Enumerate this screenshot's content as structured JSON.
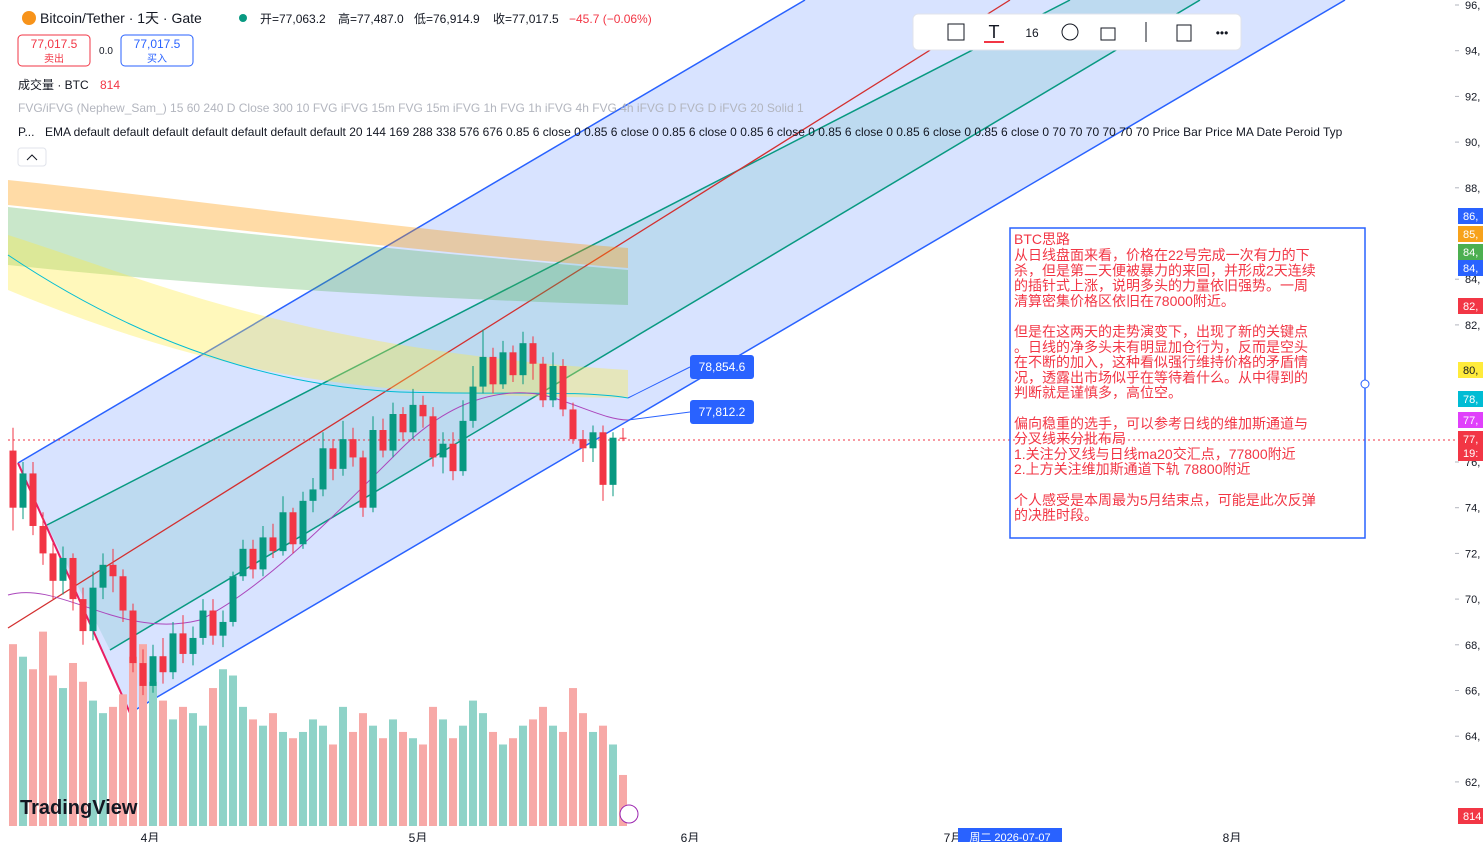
{
  "header": {
    "symbol": "Bitcoin/Tether · 1天 · Gate",
    "open": "开=77,063.2",
    "high": "高=77,487.0",
    "low": "低=76,914.9",
    "close": "收=77,017.5",
    "change": "−45.7 (−0.06%)"
  },
  "trade": {
    "sell_price": "77,017.5",
    "sell": "卖出",
    "spread": "0.0",
    "buy_price": "77,017.5",
    "buy": "买入"
  },
  "volume_legend": {
    "label": "成交量 · BTC",
    "value": "814"
  },
  "indicators": [
    "FVG/iFVG (Nephew_Sam_) 15 60 240 D Close 300 10 FVG iFVG 15m FVG 15m iFVG 1h FVG 1h iFVG 4h FVG 4h iFVG D FVG D iFVG 20 Solid 1",
    "EMA default default default default default default default 20 144 169 288 338 576 676 0.85 6 close 0 0.85 6 close 0 0.85 6 close 0 0.85 6 close 0 0.85 6 close 0 0.85 6 close 0 0.85 6 close 0 70 70 70 70 70 70 Price Bar Price MA Date Peroid Typ"
  ],
  "indicator_prefix": "P...",
  "toolbar": {
    "font_size": "16"
  },
  "logo": "TradingView",
  "chart": {
    "type": "candlestick",
    "candles": [
      [
        76500,
        77500,
        73000,
        74000
      ],
      [
        74000,
        76000,
        73500,
        75500
      ],
      [
        75500,
        76000,
        72800,
        73200
      ],
      [
        73200,
        73800,
        71500,
        72000
      ],
      [
        72000,
        72500,
        70000,
        70800
      ],
      [
        70800,
        72300,
        70200,
        71800
      ],
      [
        71800,
        72000,
        69500,
        70000
      ],
      [
        70000,
        70500,
        68000,
        68600
      ],
      [
        68600,
        71200,
        68200,
        70500
      ],
      [
        70500,
        72000,
        70000,
        71500
      ],
      [
        71500,
        72200,
        70300,
        71000
      ],
      [
        71000,
        71300,
        69000,
        69500
      ],
      [
        69500,
        69800,
        66800,
        67200
      ],
      [
        67200,
        67800,
        65800,
        66200
      ],
      [
        66200,
        68000,
        65900,
        67500
      ],
      [
        67500,
        68300,
        66300,
        66800
      ],
      [
        66800,
        69000,
        66500,
        68500
      ],
      [
        68500,
        69300,
        67200,
        67600
      ],
      [
        67600,
        68800,
        67100,
        68300
      ],
      [
        68300,
        70000,
        68000,
        69500
      ],
      [
        69500,
        70000,
        68000,
        68400
      ],
      [
        68400,
        69500,
        67900,
        69000
      ],
      [
        69000,
        71200,
        68800,
        71000
      ],
      [
        71000,
        72600,
        70800,
        72200
      ],
      [
        72200,
        72600,
        70900,
        71300
      ],
      [
        71300,
        73200,
        71000,
        72700
      ],
      [
        72700,
        73300,
        71800,
        72100
      ],
      [
        72100,
        74500,
        71900,
        73800
      ],
      [
        73800,
        74000,
        72000,
        72400
      ],
      [
        72400,
        74700,
        72200,
        74300
      ],
      [
        74300,
        75300,
        73800,
        74800
      ],
      [
        74800,
        77300,
        74500,
        76600
      ],
      [
        76600,
        77000,
        75200,
        75700
      ],
      [
        75700,
        77800,
        75400,
        77000
      ],
      [
        77000,
        77500,
        75800,
        76200
      ],
      [
        76200,
        76500,
        73600,
        74000
      ],
      [
        74000,
        78000,
        73800,
        77400
      ],
      [
        77400,
        77900,
        76200,
        76500
      ],
      [
        76500,
        78600,
        76200,
        78100
      ],
      [
        78100,
        78400,
        76900,
        77300
      ],
      [
        77300,
        79200,
        77000,
        78500
      ],
      [
        78500,
        78900,
        77500,
        78000
      ],
      [
        78000,
        78400,
        75800,
        76200
      ],
      [
        76200,
        77300,
        75500,
        76800
      ],
      [
        76800,
        77300,
        75200,
        75600
      ],
      [
        75600,
        78700,
        75400,
        77800
      ],
      [
        77800,
        80200,
        77500,
        79300
      ],
      [
        79300,
        81800,
        79000,
        80600
      ],
      [
        80600,
        81000,
        79000,
        79400
      ],
      [
        79400,
        81300,
        79200,
        80800
      ],
      [
        80800,
        81100,
        79500,
        79800
      ],
      [
        79800,
        81700,
        79400,
        81200
      ],
      [
        81200,
        81500,
        79600,
        80300
      ],
      [
        80300,
        80600,
        78400,
        78700
      ],
      [
        78700,
        80800,
        78400,
        80200
      ],
      [
        80200,
        80500,
        78000,
        78300
      ],
      [
        78300,
        78600,
        76800,
        77000
      ],
      [
        77000,
        77400,
        76000,
        76600
      ],
      [
        76600,
        77600,
        76000,
        77300
      ],
      [
        77300,
        77600,
        74300,
        75000
      ],
      [
        75000,
        77300,
        74500,
        77063
      ],
      [
        77063,
        77487,
        76914.9,
        77017.5
      ]
    ],
    "volumes": [
      2900,
      2700,
      2500,
      3100,
      2400,
      2200,
      2600,
      2300,
      2000,
      1800,
      1900,
      2100,
      2700,
      2900,
      2300,
      2000,
      1700,
      1900,
      1800,
      1600,
      2200,
      2500,
      2400,
      1900,
      1700,
      1600,
      1800,
      1500,
      1400,
      1500,
      1700,
      1600,
      1300,
      1900,
      1500,
      1800,
      1600,
      1400,
      1700,
      1500,
      1400,
      1300,
      1900,
      1700,
      1400,
      1600,
      2000,
      1800,
      1500,
      1300,
      1400,
      1600,
      1700,
      1900,
      1600,
      1500,
      2200,
      1800,
      1500,
      1600,
      1300,
      814
    ],
    "ylim": [
      61000,
      96200
    ],
    "yticks": [
      {
        "value": 96000,
        "label": "96,"
      },
      {
        "value": 94000,
        "label": "94,"
      },
      {
        "value": 92000,
        "label": "92,"
      },
      {
        "value": 90000,
        "label": "90,"
      },
      {
        "value": 88000,
        "label": "88,"
      },
      {
        "value": 84000,
        "label": "84,"
      },
      {
        "value": 82000,
        "label": "82,"
      },
      {
        "value": 76000,
        "label": "76,"
      },
      {
        "value": 74000,
        "label": "74,"
      },
      {
        "value": 72000,
        "label": "72,"
      },
      {
        "value": 70000,
        "label": "70,"
      },
      {
        "value": 68000,
        "label": "68,"
      },
      {
        "value": 66000,
        "label": "66,"
      },
      {
        "value": 64000,
        "label": "64,"
      },
      {
        "value": 62000,
        "label": "62,"
      }
    ],
    "xlabels": [
      "4月",
      "5月",
      "6月",
      "7月",
      "8月"
    ],
    "date_label": "周二 2026-07-07",
    "price_labels": [
      "78,854.6",
      "77,812.2"
    ],
    "badges": [
      {
        "label": "86,",
        "color": "#2962ff"
      },
      {
        "label": "85,",
        "color": "#f7a21b"
      },
      {
        "label": "84,",
        "color": "#4caf50"
      },
      {
        "label": "84,",
        "color": "#2962ff"
      },
      {
        "label": "82,",
        "color": "#f23645"
      },
      {
        "label": "80,",
        "color": "#ffeb3b"
      },
      {
        "label": "78,",
        "color": "#00bcd4"
      },
      {
        "label": "77,",
        "color": "#e040fb"
      },
      {
        "label": "77,",
        "color": "#f23645"
      },
      {
        "label": "19:",
        "color": "#f23645"
      },
      {
        "label": "814",
        "color": "#f23645"
      }
    ]
  },
  "note": {
    "title": "BTC思路",
    "lines": [
      "从日线盘面来看，价格在22号完成一次有力的下",
      "杀，但是第二天便被暴力的来回，并形成2天连续",
      "的插针式上涨，说明多头的力量依旧强势。一周",
      "清算密集价格区依旧在78000附近。",
      "",
      "但是在这两天的走势演变下，出现了新的关键点",
      "。日线的净多头未有明显加仓行为，反而是空头",
      "在不断的加入，这种看似强行维持价格的矛盾情",
      "况，透露出市场似乎在等待着什么。从中得到的",
      "判断就是谨慎多，高位空。",
      "",
      "偏向稳重的选手，可以参考日线的维加斯通道与",
      "分叉线来分批布局",
      "1.关注分叉线与日线ma20交汇点，77800附近",
      "2.上方关注维加斯通道下轨 78800附近",
      "",
      "个人感受是本周最为5月结束点，可能是此次反弹",
      "的决胜时段。"
    ]
  }
}
